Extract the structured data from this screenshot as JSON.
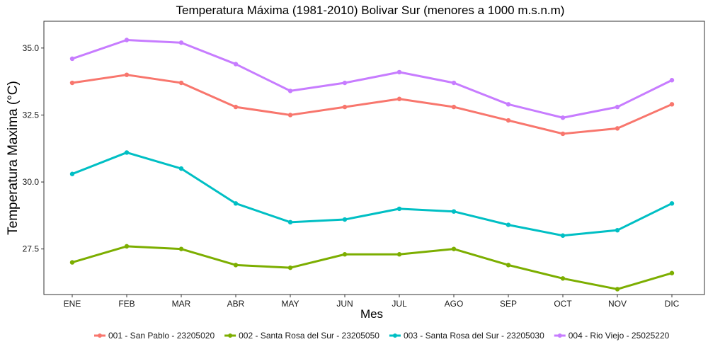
{
  "chart_data": {
    "type": "line",
    "title": "Temperatura Máxima (1981-2010) Bolivar Sur (menores a 1000 m.s.n.m)",
    "xlabel": "Mes",
    "ylabel": "Temperatura Maxima (°C)",
    "categories": [
      "ENE",
      "FEB",
      "MAR",
      "ABR",
      "MAY",
      "JUN",
      "JUL",
      "AGO",
      "SEP",
      "OCT",
      "NOV",
      "DIC"
    ],
    "ylim": [
      25.8,
      36.0
    ],
    "yticks": [
      27.5,
      30.0,
      32.5,
      35.0
    ],
    "ytick_labels": [
      "27.5",
      "30.0",
      "32.5",
      "35.0"
    ],
    "grid": false,
    "legend_position": "bottom",
    "series": [
      {
        "name": "001 - San Pablo - 23205020",
        "color": "#F8766D",
        "values": [
          33.7,
          34.0,
          33.7,
          32.8,
          32.5,
          32.8,
          33.1,
          32.8,
          32.3,
          31.8,
          32.0,
          32.9
        ]
      },
      {
        "name": "002 - Santa Rosa del Sur - 23205050",
        "color": "#7CAE00",
        "values": [
          27.0,
          27.6,
          27.5,
          26.9,
          26.8,
          27.3,
          27.3,
          27.5,
          26.9,
          26.4,
          26.0,
          26.6
        ]
      },
      {
        "name": "003 - Santa Rosa del Sur - 23205030",
        "color": "#00BFC4",
        "values": [
          30.3,
          31.1,
          30.5,
          29.2,
          28.5,
          28.6,
          29.0,
          28.9,
          28.4,
          28.0,
          28.2,
          29.2
        ]
      },
      {
        "name": "004 - Rio Viejo - 25025220",
        "color": "#C77CFF",
        "values": [
          34.6,
          35.3,
          35.2,
          34.4,
          33.4,
          33.7,
          34.1,
          33.7,
          32.9,
          32.4,
          32.8,
          33.8
        ]
      }
    ]
  }
}
